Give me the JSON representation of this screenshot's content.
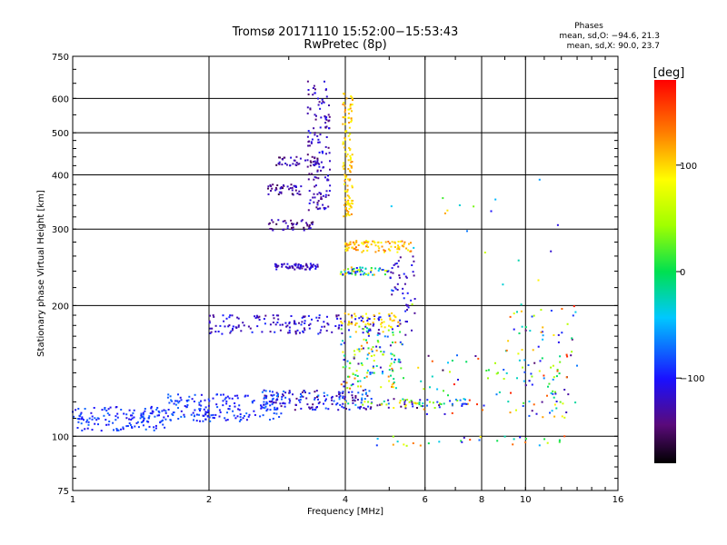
{
  "header": {
    "title": "Tromsø 20171110 15:52:00−15:53:43",
    "subtitle": "RwPretec (8p)"
  },
  "stats": {
    "heading": "Phases",
    "line_o": "mean, sd,O:  −94.6, 21.3",
    "line_x": "mean, sd,X:  90.0, 23.7"
  },
  "colorbar": {
    "label": "[deg]",
    "min": -180,
    "max": 180,
    "ticks": [
      100,
      0,
      -100
    ],
    "tick_labels": [
      "100",
      "0",
      "−100"
    ]
  },
  "chart_data": {
    "type": "scatter",
    "xlabel": "Frequency [MHz]",
    "ylabel": "Stationary phase Virtual Height [km]",
    "xscale": "log",
    "yscale": "log",
    "xlim": [
      1,
      16
    ],
    "ylim": [
      75,
      750
    ],
    "xticks": [
      1,
      2,
      4,
      6,
      8,
      10,
      16
    ],
    "xtick_labels": [
      "1",
      "2",
      "4",
      "6",
      "8",
      "10",
      "16"
    ],
    "yticks": [
      75,
      100,
      200,
      300,
      400,
      500,
      600,
      750
    ],
    "ytick_labels": [
      "75",
      "100",
      "200",
      "300",
      "400",
      "500",
      "600",
      "750"
    ],
    "grid": true,
    "color_by": "phase [deg]",
    "clusters": [
      {
        "f": [
          1.0,
          1.6
        ],
        "h": [
          103,
          117
        ],
        "phase": [
          -110,
          -70
        ],
        "n": 140
      },
      {
        "f": [
          1.6,
          2.9
        ],
        "h": [
          108,
          125
        ],
        "phase": [
          -110,
          -70
        ],
        "n": 170
      },
      {
        "f": [
          2.6,
          4.6
        ],
        "h": [
          115,
          128
        ],
        "phase": [
          -150,
          -60
        ],
        "n": 160
      },
      {
        "f": [
          4.0,
          7.5
        ],
        "h": [
          116,
          122
        ],
        "phase": [
          -160,
          120
        ],
        "n": 80
      },
      {
        "f": [
          2.0,
          4.8
        ],
        "h": [
          172,
          190
        ],
        "phase": [
          -140,
          -90
        ],
        "n": 160
      },
      {
        "f": [
          3.9,
          5.3
        ],
        "h": [
          178,
          192
        ],
        "phase": [
          80,
          120
        ],
        "n": 50
      },
      {
        "f": [
          2.8,
          3.5
        ],
        "h": [
          242,
          250
        ],
        "phase": [
          -140,
          -100
        ],
        "n": 60
      },
      {
        "f": [
          2.7,
          3.5
        ],
        "h": [
          298,
          315
        ],
        "phase": [
          -160,
          -110
        ],
        "n": 40
      },
      {
        "f": [
          2.7,
          3.2
        ],
        "h": [
          360,
          380
        ],
        "phase": [
          -160,
          -110
        ],
        "n": 40
      },
      {
        "f": [
          2.8,
          3.5
        ],
        "h": [
          420,
          440
        ],
        "phase": [
          -160,
          -110
        ],
        "n": 40
      },
      {
        "f": [
          3.3,
          3.7
        ],
        "h": [
          330,
          660
        ],
        "phase": [
          -150,
          -100
        ],
        "n": 140
      },
      {
        "f": [
          3.95,
          4.15
        ],
        "h": [
          320,
          620
        ],
        "phase": [
          80,
          130
        ],
        "n": 120
      },
      {
        "f": [
          4.0,
          5.6
        ],
        "h": [
          265,
          282
        ],
        "phase": [
          80,
          140
        ],
        "n": 90
      },
      {
        "f": [
          3.9,
          5.0
        ],
        "h": [
          235,
          245
        ],
        "phase": [
          -130,
          120
        ],
        "n": 60
      },
      {
        "f": [
          3.9,
          5.4
        ],
        "h": [
          128,
          180
        ],
        "phase": [
          -140,
          140
        ],
        "n": 140
      },
      {
        "f": [
          5.0,
          5.7
        ],
        "h": [
          170,
          260
        ],
        "phase": [
          -140,
          -90
        ],
        "n": 50
      },
      {
        "f": [
          5.6,
          9.0
        ],
        "h": [
          110,
          160
        ],
        "phase": [
          -160,
          170
        ],
        "n": 40
      },
      {
        "f": [
          9.0,
          13.0
        ],
        "h": [
          110,
          200
        ],
        "phase": [
          -150,
          170
        ],
        "n": 110
      },
      {
        "f": [
          4.5,
          12.5
        ],
        "h": [
          95,
          100
        ],
        "phase": [
          -150,
          160
        ],
        "n": 30
      },
      {
        "f": [
          5.0,
          12.0
        ],
        "h": [
          200,
          400
        ],
        "phase": [
          -150,
          130
        ],
        "n": 20
      }
    ]
  }
}
